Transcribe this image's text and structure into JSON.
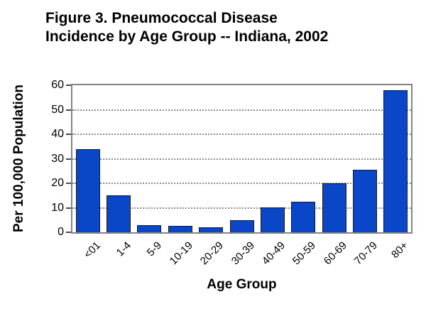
{
  "title": {
    "line1": "Figure 3. Pneumococcal Disease",
    "line2": "Incidence by Age Group -- Indiana, 2002"
  },
  "chart_data": {
    "type": "bar",
    "title": "Figure 3. Pneumococcal Disease Incidence by Age Group -- Indiana, 2002",
    "categories": [
      "<01",
      "1-4",
      "5-9",
      "10-19",
      "20-29",
      "30-39",
      "40-49",
      "50-59",
      "60-69",
      "70-79",
      "80+"
    ],
    "values": [
      34,
      15,
      3,
      2.5,
      2,
      5,
      10,
      12.5,
      20,
      25.5,
      58
    ],
    "xlabel": "Age Group",
    "ylabel": "Per 100,000 Population",
    "ylim": [
      0,
      60
    ],
    "yticks": [
      0,
      10,
      20,
      30,
      40,
      50,
      60
    ],
    "grid": "horizontal dotted lines at 10,20,30,40,50",
    "legend_position": "none",
    "colors": {
      "bar_fill": "#0a46c8",
      "bar_border": "#1a1a1a",
      "plot_border": "#848484",
      "gridline": "#8a8a8a",
      "text": "#000000",
      "background": "#ffffff"
    }
  }
}
